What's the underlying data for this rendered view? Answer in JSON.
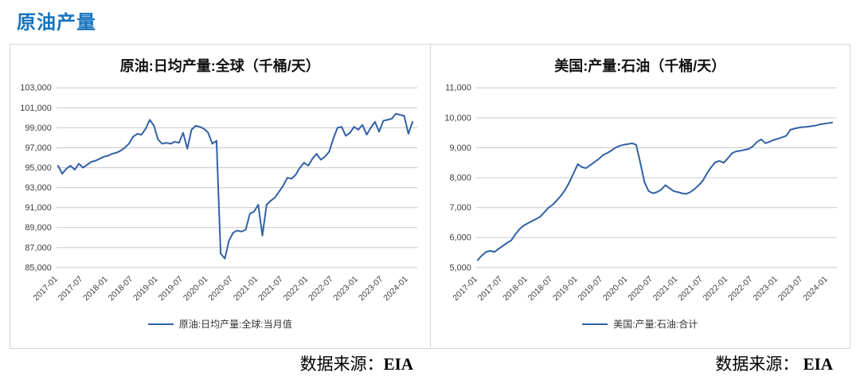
{
  "page": {
    "title": "原油产量",
    "title_color": "#1673bd"
  },
  "sources": {
    "left_prefix": "数据来源：",
    "left_name": "EIA",
    "right_prefix": "数据来源： ",
    "right_name": "EIA"
  },
  "chart_data": [
    {
      "type": "line",
      "title": "原油:日均产量:全球（千桶/天）",
      "legend": "原油:日均产量:全球:当月值",
      "line_color": "#3161a5",
      "grid": true,
      "legend_position": "bottom",
      "x_start": "2017-01",
      "x_freq": "monthly",
      "x_tick_labels": [
        "2017-01",
        "2017-07",
        "2018-01",
        "2018-07",
        "2019-01",
        "2019-07",
        "2020-01",
        "2020-07",
        "2021-01",
        "2021-07",
        "2022-01",
        "2022-07",
        "2023-01",
        "2023-07",
        "2024-01"
      ],
      "ylim": [
        85000,
        103000
      ],
      "ytick_step": 2000,
      "yticks": [
        "103,000",
        "101,000",
        "99,000",
        "97,000",
        "95,000",
        "93,000",
        "91,000",
        "89,000",
        "87,000",
        "85,000"
      ],
      "values": [
        95200,
        94400,
        94900,
        95200,
        94800,
        95400,
        95000,
        95300,
        95600,
        95700,
        95900,
        96100,
        96200,
        96400,
        96500,
        96700,
        97000,
        97400,
        98100,
        98400,
        98300,
        98900,
        99800,
        99200,
        97800,
        97400,
        97500,
        97400,
        97600,
        97500,
        98500,
        96900,
        98800,
        99200,
        99100,
        98900,
        98500,
        97400,
        97700,
        86400,
        85900,
        87700,
        88500,
        88700,
        88600,
        88800,
        90400,
        90600,
        91300,
        88200,
        91300,
        91700,
        92000,
        92600,
        93200,
        94000,
        93900,
        94300,
        95000,
        95500,
        95200,
        95900,
        96400,
        95800,
        96100,
        96600,
        97900,
        99000,
        99100,
        98200,
        98500,
        99100,
        98800,
        99300,
        98300,
        99000,
        99600,
        98600,
        99700,
        99800,
        99900,
        100400,
        100300,
        100200,
        98400,
        99600
      ]
    },
    {
      "type": "line",
      "title": "美国:产量:石油（千桶/天）",
      "legend": "美国:产量:石油:合计",
      "line_color": "#3161a5",
      "grid": true,
      "legend_position": "bottom",
      "x_start": "2017-01",
      "x_freq": "monthly",
      "x_tick_labels": [
        "2017-01",
        "2017-07",
        "2018-01",
        "2018-07",
        "2019-01",
        "2019-07",
        "2020-01",
        "2020-07",
        "2021-01",
        "2021-07",
        "2022-01",
        "2022-07",
        "2023-01",
        "2023-07",
        "2024-01"
      ],
      "ylim": [
        5000,
        11000
      ],
      "ytick_step": 1000,
      "yticks": [
        "11,000",
        "10,000",
        "9,000",
        "8,000",
        "7,000",
        "6,000",
        "5,000"
      ],
      "values": [
        5250,
        5400,
        5520,
        5560,
        5520,
        5620,
        5720,
        5820,
        5900,
        6100,
        6280,
        6400,
        6480,
        6550,
        6620,
        6700,
        6850,
        7000,
        7100,
        7250,
        7400,
        7600,
        7850,
        8150,
        8450,
        8350,
        8320,
        8420,
        8520,
        8620,
        8750,
        8820,
        8900,
        9000,
        9060,
        9100,
        9120,
        9150,
        9100,
        8500,
        7850,
        7550,
        7480,
        7520,
        7600,
        7750,
        7650,
        7550,
        7520,
        7480,
        7460,
        7520,
        7620,
        7750,
        7900,
        8150,
        8350,
        8520,
        8560,
        8500,
        8650,
        8820,
        8880,
        8900,
        8930,
        8960,
        9050,
        9200,
        9280,
        9150,
        9200,
        9260,
        9300,
        9350,
        9400,
        9600,
        9640,
        9670,
        9690,
        9700,
        9720,
        9740,
        9780,
        9800,
        9820,
        9840
      ]
    }
  ]
}
